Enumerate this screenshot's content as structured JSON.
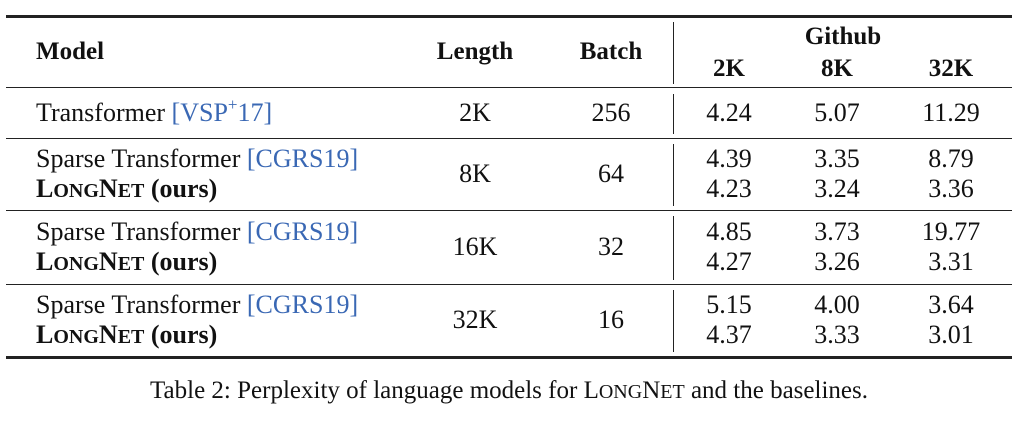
{
  "headers": {
    "model": "Model",
    "length": "Length",
    "batch": "Batch",
    "group": "Github",
    "cols": [
      "2K",
      "8K",
      "32K"
    ]
  },
  "rows": [
    {
      "length": "2K",
      "batch": "256",
      "model_a": {
        "name": "Transformer",
        "cite": "VSP",
        "cite_sup": "+",
        "cite_tail": "17",
        "values": [
          "4.24",
          "5.07",
          "11.29"
        ]
      }
    },
    {
      "length": "8K",
      "batch": "64",
      "model_a": {
        "name": "Sparse Transformer",
        "cite": "CGRS19",
        "values": [
          "4.39",
          "3.35",
          "8.79"
        ]
      },
      "model_b": {
        "name_big1": "L",
        "name_small1": "ONG",
        "name_big2": "N",
        "name_small2": "ET",
        "suffix": "(ours)",
        "values": [
          "4.23",
          "3.24",
          "3.36"
        ]
      }
    },
    {
      "length": "16K",
      "batch": "32",
      "model_a": {
        "name": "Sparse Transformer",
        "cite": "CGRS19",
        "values": [
          "4.85",
          "3.73",
          "19.77"
        ]
      },
      "model_b": {
        "name_big1": "L",
        "name_small1": "ONG",
        "name_big2": "N",
        "name_small2": "ET",
        "suffix": "(ours)",
        "values": [
          "4.27",
          "3.26",
          "3.31"
        ]
      }
    },
    {
      "length": "32K",
      "batch": "16",
      "model_a": {
        "name": "Sparse Transformer",
        "cite": "CGRS19",
        "values": [
          "5.15",
          "4.00",
          "3.64"
        ]
      },
      "model_b": {
        "name_big1": "L",
        "name_small1": "ONG",
        "name_big2": "N",
        "name_small2": "ET",
        "suffix": "(ours)",
        "values": [
          "4.37",
          "3.33",
          "3.01"
        ]
      }
    }
  ],
  "caption": {
    "prefix": "Table 2: Perplexity of language models for ",
    "name_big1": "L",
    "name_small1": "ONG",
    "name_big2": "N",
    "name_small2": "ET",
    "suffix": " and the baselines."
  }
}
